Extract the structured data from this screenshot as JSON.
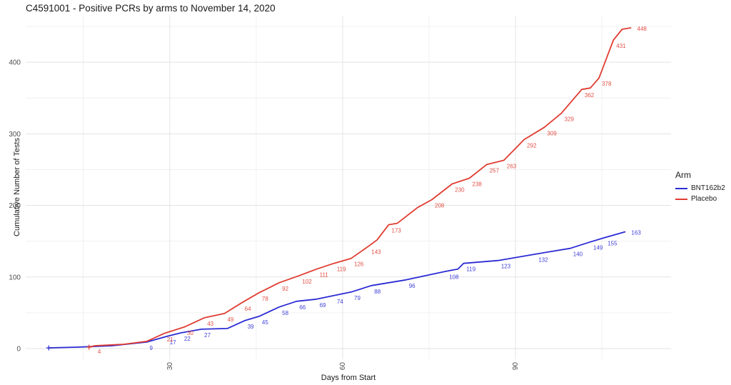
{
  "title": "C4591001 - Positive PCRs by arms to November 14, 2020",
  "chart_data": {
    "type": "line",
    "title": "C4591001 - Positive PCRs by arms to November 14, 2020",
    "xlabel": "Days from Start",
    "ylabel": "Cumulative Number of Tests",
    "grid": true,
    "background": "#ffffff",
    "grid_major_color": "#e3e3e3",
    "grid_minor_color": "#f0f0f0",
    "tick_label_color": "#4d4d4d",
    "x_axis": {
      "domain": [
        5,
        117
      ],
      "ticks": [
        30,
        60,
        90
      ],
      "minor_ticks": [
        15,
        45,
        75,
        105
      ],
      "tick_labels_rotated": true
    },
    "y_axis": {
      "domain": [
        -15,
        465
      ],
      "ticks": [
        0,
        100,
        200,
        300,
        400
      ],
      "minor_ticks": [
        50,
        150,
        250,
        350,
        450
      ]
    },
    "legend": {
      "title": "Arm",
      "position": "right",
      "entries": [
        {
          "label": "BNT162b2",
          "color": "#2b2bd5"
        },
        {
          "label": "Placebo",
          "color": "#e03c31"
        }
      ]
    },
    "series": [
      {
        "name": "BNT162b2",
        "color": "#2b2bd5",
        "points": [
          [
            9,
            1,
            0
          ],
          [
            14,
            2,
            0
          ],
          [
            20,
            4,
            0
          ],
          [
            26,
            9,
            1
          ],
          [
            29.5,
            17,
            1
          ],
          [
            32,
            22,
            1
          ],
          [
            35.5,
            27,
            1
          ],
          [
            40,
            28,
            0
          ],
          [
            43,
            39,
            1
          ],
          [
            45.5,
            45,
            1
          ],
          [
            49,
            58,
            1
          ],
          [
            52,
            66,
            1
          ],
          [
            55.5,
            69,
            1
          ],
          [
            58.5,
            74,
            1
          ],
          [
            61.5,
            79,
            1
          ],
          [
            65,
            88,
            1
          ],
          [
            71,
            96,
            1
          ],
          [
            78,
            108,
            1
          ],
          [
            80,
            111,
            0
          ],
          [
            81,
            119,
            1
          ],
          [
            87,
            123,
            1
          ],
          [
            93.5,
            132,
            1
          ],
          [
            99.5,
            140,
            1
          ],
          [
            103,
            149,
            1
          ],
          [
            105.5,
            155,
            1
          ],
          [
            109,
            163,
            1
          ]
        ]
      },
      {
        "name": "Placebo",
        "color": "#e03c31",
        "points": [
          [
            16,
            2,
            0
          ],
          [
            17,
            4,
            1
          ],
          [
            22,
            6,
            0
          ],
          [
            26,
            10,
            0
          ],
          [
            29,
            21,
            1
          ],
          [
            32.5,
            30,
            1
          ],
          [
            36,
            43,
            1
          ],
          [
            39.5,
            49,
            1
          ],
          [
            42.5,
            64,
            1
          ],
          [
            45.5,
            78,
            1
          ],
          [
            49,
            92,
            1
          ],
          [
            52.5,
            102,
            1
          ],
          [
            55.5,
            111,
            1
          ],
          [
            58.5,
            119,
            1
          ],
          [
            61.5,
            126,
            1
          ],
          [
            64.5,
            143,
            1
          ],
          [
            66,
            152,
            0
          ],
          [
            68,
            173,
            1
          ],
          [
            69.5,
            175,
            0
          ],
          [
            73,
            197,
            0
          ],
          [
            75.5,
            208,
            1
          ],
          [
            79,
            230,
            1
          ],
          [
            82,
            238,
            1
          ],
          [
            85,
            257,
            1
          ],
          [
            88,
            263,
            1
          ],
          [
            91.5,
            292,
            1
          ],
          [
            95,
            309,
            1
          ],
          [
            98,
            329,
            1
          ],
          [
            101.5,
            362,
            1
          ],
          [
            103,
            364,
            0
          ],
          [
            104.5,
            378,
            1
          ],
          [
            107,
            431,
            1
          ],
          [
            108.5,
            446,
            0
          ],
          [
            110,
            448,
            1
          ]
        ]
      }
    ]
  }
}
